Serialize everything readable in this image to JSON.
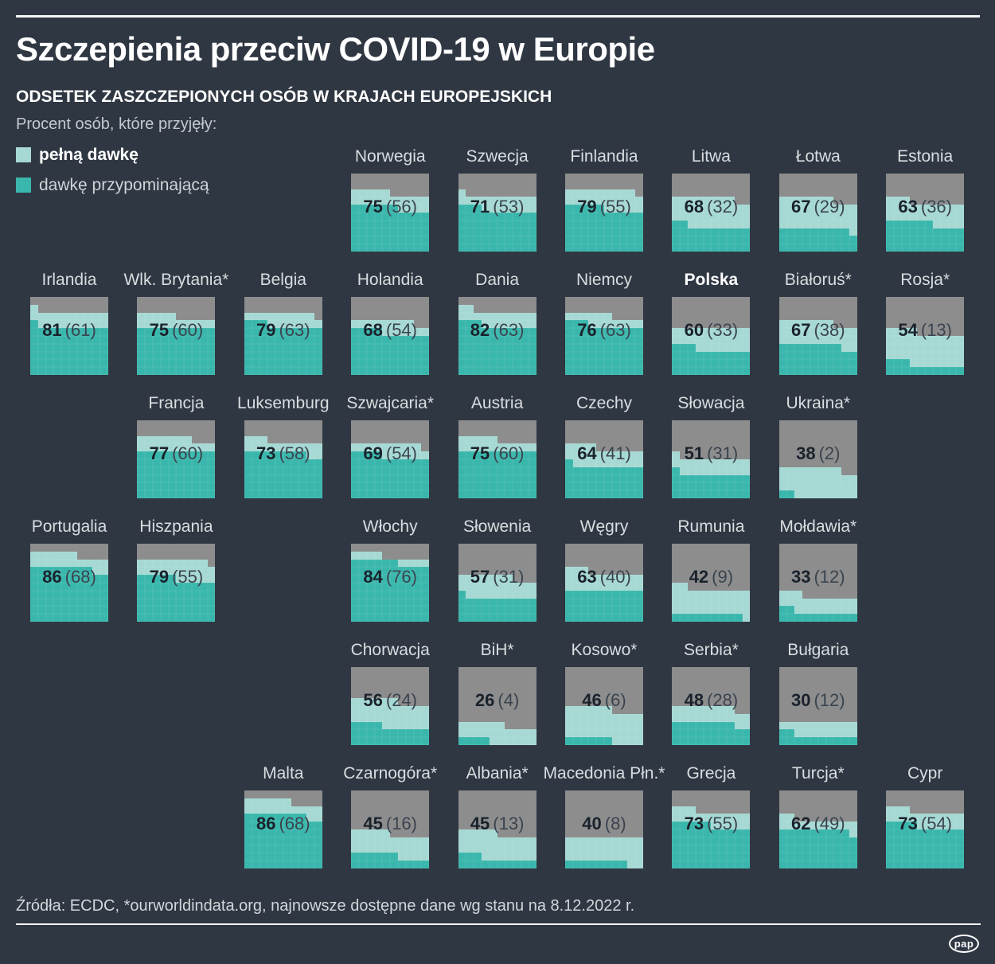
{
  "header": {
    "title": "Szczepienia przeciw COVID-19 w Europie",
    "subtitle": "ODSETEK ZASZCZEPIONYCH OSÓB W KRAJACH EUROPEJSKICH",
    "lead": "Procent osób, które przyjęły:"
  },
  "legend": {
    "items": [
      {
        "label": "pełną dawkę",
        "color": "#a6d9d3",
        "bold": true
      },
      {
        "label": "dawkę przypominającą",
        "color": "#3ab7ac",
        "bold": false
      }
    ]
  },
  "colors": {
    "background": "#2f3742",
    "tile_gray": "#8d8d8d",
    "full_dose": "#a6d9d3",
    "booster": "#3ab7ac",
    "value_text": "#1a222c",
    "booster_value_text": "#3a444f",
    "label_text": "#d9dde0",
    "rule_white": "#f4f5f6"
  },
  "chart_data": {
    "type": "bar",
    "variant": "waffle small-multiples: one 10x10 unit grid per country, filled bottom-up left-to-right; light teal = full dose %, dark teal = booster %",
    "unit": "%",
    "series_names": [
      "pełną dawkę",
      "dawkę przypominającą"
    ],
    "value_format": "FULL (BOOSTER)",
    "countries": [
      {
        "name": "Norwegia",
        "full": 75,
        "booster": 56,
        "row": 1,
        "col": 4
      },
      {
        "name": "Szwecja",
        "full": 71,
        "booster": 53,
        "row": 1,
        "col": 5
      },
      {
        "name": "Finlandia",
        "full": 79,
        "booster": 55,
        "row": 1,
        "col": 6
      },
      {
        "name": "Litwa",
        "full": 68,
        "booster": 32,
        "row": 1,
        "col": 7
      },
      {
        "name": "Łotwa",
        "full": 67,
        "booster": 29,
        "row": 1,
        "col": 8
      },
      {
        "name": "Estonia",
        "full": 63,
        "booster": 36,
        "row": 1,
        "col": 9
      },
      {
        "name": "Irlandia",
        "full": 81,
        "booster": 61,
        "row": 2,
        "col": 1
      },
      {
        "name": "Wlk. Brytania*",
        "full": 75,
        "booster": 60,
        "row": 2,
        "col": 2
      },
      {
        "name": "Belgia",
        "full": 79,
        "booster": 63,
        "row": 2,
        "col": 3
      },
      {
        "name": "Holandia",
        "full": 68,
        "booster": 54,
        "row": 2,
        "col": 4
      },
      {
        "name": "Dania",
        "full": 82,
        "booster": 63,
        "row": 2,
        "col": 5
      },
      {
        "name": "Niemcy",
        "full": 76,
        "booster": 63,
        "row": 2,
        "col": 6
      },
      {
        "name": "Polska",
        "full": 60,
        "booster": 33,
        "row": 2,
        "col": 7,
        "bold": true
      },
      {
        "name": "Białoruś*",
        "full": 67,
        "booster": 38,
        "row": 2,
        "col": 8
      },
      {
        "name": "Rosja*",
        "full": 54,
        "booster": 13,
        "row": 2,
        "col": 9
      },
      {
        "name": "Francja",
        "full": 77,
        "booster": 60,
        "row": 3,
        "col": 2
      },
      {
        "name": "Luksemburg",
        "full": 73,
        "booster": 58,
        "row": 3,
        "col": 3
      },
      {
        "name": "Szwajcaria*",
        "full": 69,
        "booster": 54,
        "row": 3,
        "col": 4
      },
      {
        "name": "Austria",
        "full": 75,
        "booster": 60,
        "row": 3,
        "col": 5
      },
      {
        "name": "Czechy",
        "full": 64,
        "booster": 41,
        "row": 3,
        "col": 6
      },
      {
        "name": "Słowacja",
        "full": 51,
        "booster": 31,
        "row": 3,
        "col": 7
      },
      {
        "name": "Ukraina*",
        "full": 38,
        "booster": 2,
        "row": 3,
        "col": 8
      },
      {
        "name": "Portugalia",
        "full": 86,
        "booster": 68,
        "row": 4,
        "col": 1
      },
      {
        "name": "Hiszpania",
        "full": 79,
        "booster": 55,
        "row": 4,
        "col": 2
      },
      {
        "name": "Włochy",
        "full": 84,
        "booster": 76,
        "row": 4,
        "col": 4
      },
      {
        "name": "Słowenia",
        "full": 57,
        "booster": 31,
        "row": 4,
        "col": 5
      },
      {
        "name": "Węgry",
        "full": 63,
        "booster": 40,
        "row": 4,
        "col": 6
      },
      {
        "name": "Rumunia",
        "full": 42,
        "booster": 9,
        "row": 4,
        "col": 7
      },
      {
        "name": "Mołdawia*",
        "full": 33,
        "booster": 12,
        "row": 4,
        "col": 8
      },
      {
        "name": "Chorwacja",
        "full": 56,
        "booster": 24,
        "row": 5,
        "col": 4
      },
      {
        "name": "BiH*",
        "full": 26,
        "booster": 4,
        "row": 5,
        "col": 5
      },
      {
        "name": "Kosowo*",
        "full": 46,
        "booster": 6,
        "row": 5,
        "col": 6
      },
      {
        "name": "Serbia*",
        "full": 48,
        "booster": 28,
        "row": 5,
        "col": 7
      },
      {
        "name": "Bułgaria",
        "full": 30,
        "booster": 12,
        "row": 5,
        "col": 8
      },
      {
        "name": "Malta",
        "full": 86,
        "booster": 68,
        "row": 6,
        "col": 3
      },
      {
        "name": "Czarnogóra*",
        "full": 45,
        "booster": 16,
        "row": 6,
        "col": 4
      },
      {
        "name": "Albania*",
        "full": 45,
        "booster": 13,
        "row": 6,
        "col": 5
      },
      {
        "name": "Macedonia Płn.*",
        "full": 40,
        "booster": 8,
        "row": 6,
        "col": 6
      },
      {
        "name": "Grecja",
        "full": 73,
        "booster": 55,
        "row": 6,
        "col": 7
      },
      {
        "name": "Turcja*",
        "full": 62,
        "booster": 49,
        "row": 6,
        "col": 8
      },
      {
        "name": "Cypr",
        "full": 73,
        "booster": 54,
        "row": 6,
        "col": 9
      }
    ]
  },
  "footer": {
    "source": "Źródła: ECDC, *ourworldindata.org, najnowsze dostępne dane wg stanu na 8.12.2022 r.",
    "logo": "pap"
  }
}
